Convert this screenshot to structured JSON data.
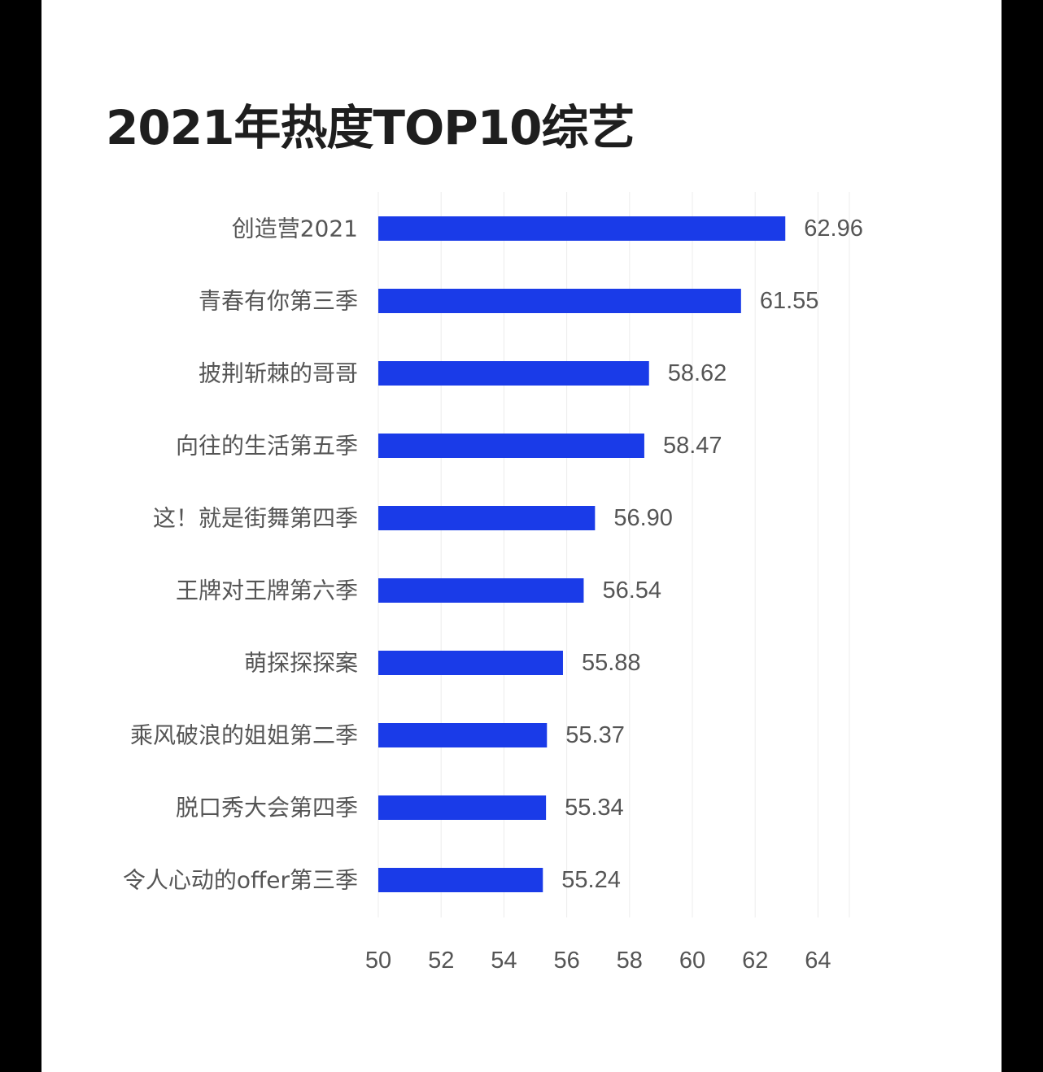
{
  "chart_data": {
    "type": "bar",
    "orientation": "horizontal",
    "title": "2021年热度TOP10综艺",
    "categories": [
      "创造营2021",
      "青春有你第三季",
      "披荆斩棘的哥哥",
      "向往的生活第五季",
      "这！就是街舞第四季",
      "王牌对王牌第六季",
      "萌探探探案",
      "乘风破浪的姐姐第二季",
      "脱口秀大会第四季",
      "令人心动的offer第三季"
    ],
    "values": [
      62.96,
      61.55,
      58.62,
      58.47,
      56.9,
      56.54,
      55.88,
      55.37,
      55.34,
      55.24
    ],
    "value_labels": [
      "62.96",
      "61.55",
      "58.62",
      "58.47",
      "56.90",
      "56.54",
      "55.88",
      "55.37",
      "55.34",
      "55.24"
    ],
    "xlim": [
      50,
      65
    ],
    "xticks": [
      50,
      52,
      54,
      56,
      58,
      60,
      62,
      64
    ],
    "grid": true,
    "bar_color": "#1a3be8",
    "legend": "none"
  }
}
